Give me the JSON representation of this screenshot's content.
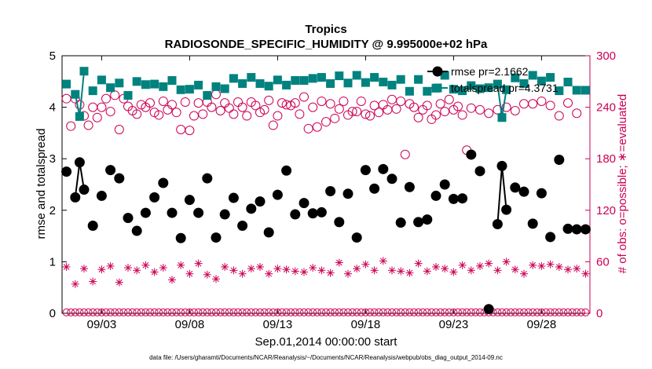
{
  "chart_data": {
    "type": "line",
    "title": "Tropics",
    "subtitle": "RADIOSONDE_SPECIFIC_HUMIDITY @ 9.995000e+02 hPa",
    "xlabel": "Sep.01,2014 00:00:00 start",
    "ylabel_left": "rmse and totalspread",
    "ylabel_right": "# of obs: o=possible; ∗=evaluated",
    "footnote": "data file: /Users/gharamti/Documents/NCAR/Reanalysis/~/Documents/NCAR/Reanalysis/webpub/obs_diag_output_2014-09.nc",
    "x_range_days": [
      0.75,
      30.75
    ],
    "x_ticks": [
      {
        "day": 3,
        "label": "09/03"
      },
      {
        "day": 8,
        "label": "09/08"
      },
      {
        "day": 13,
        "label": "09/13"
      },
      {
        "day": 18,
        "label": "09/18"
      },
      {
        "day": 23,
        "label": "09/23"
      },
      {
        "day": 28,
        "label": "09/28"
      }
    ],
    "ylim_left": [
      0,
      5
    ],
    "yticks_left": [
      "0",
      "1",
      "2",
      "3",
      "4",
      "5"
    ],
    "ylim_right": [
      0,
      300
    ],
    "yticks_right": [
      "0",
      "60",
      "120",
      "180",
      "240",
      "300"
    ],
    "colors": {
      "rmse": "#000000",
      "totalspread": "#00827f",
      "obs": "#cc0055",
      "axis": "#000000"
    },
    "legend": [
      "rmse pr=2.1662",
      "totalspread pr=4.3731"
    ],
    "x": [
      1.0,
      1.25,
      1.5,
      1.75,
      2.0,
      2.25,
      2.5,
      2.75,
      3.0,
      3.25,
      3.5,
      3.75,
      4.0,
      4.25,
      4.5,
      4.75,
      5.0,
      5.25,
      5.5,
      5.75,
      6.0,
      6.25,
      6.5,
      6.75,
      7.0,
      7.25,
      7.5,
      7.75,
      8.0,
      8.25,
      8.5,
      8.75,
      9.0,
      9.25,
      9.5,
      9.75,
      10.0,
      10.25,
      10.5,
      10.75,
      11.0,
      11.25,
      11.5,
      11.75,
      12.0,
      12.25,
      12.5,
      12.75,
      13.0,
      13.25,
      13.5,
      13.75,
      14.0,
      14.25,
      14.5,
      14.75,
      15.0,
      15.25,
      15.5,
      15.75,
      16.0,
      16.25,
      16.5,
      16.75,
      17.0,
      17.25,
      17.5,
      17.75,
      18.0,
      18.25,
      18.5,
      18.75,
      19.0,
      19.25,
      19.5,
      19.75,
      20.0,
      20.25,
      20.5,
      20.75,
      21.0,
      21.25,
      21.5,
      21.75,
      22.0,
      22.25,
      22.5,
      22.75,
      23.0,
      23.25,
      23.5,
      23.75,
      24.0,
      24.25,
      24.5,
      24.75,
      25.0,
      25.25,
      25.5,
      25.75,
      26.0,
      26.25,
      26.5,
      26.75,
      27.0,
      27.25,
      27.5,
      27.75,
      28.0,
      28.25,
      28.5,
      28.75,
      29.0,
      29.25,
      29.5,
      29.75,
      30.0,
      30.25,
      30.5
    ],
    "series": [
      {
        "name": "rmse",
        "axis": "left",
        "marker": "filled-circle",
        "x": [
          1.0,
          1.5,
          1.75,
          2.0,
          2.5,
          3.0,
          3.5,
          4.0,
          4.5,
          5.0,
          5.5,
          6.0,
          6.5,
          7.0,
          7.5,
          8.0,
          8.5,
          9.0,
          9.5,
          10.0,
          10.5,
          11.0,
          11.5,
          12.0,
          12.5,
          13.0,
          13.5,
          14.0,
          14.5,
          15.0,
          15.5,
          16.0,
          16.5,
          17.0,
          17.5,
          18.0,
          18.5,
          19.0,
          19.5,
          20.0,
          20.5,
          21.0,
          21.5,
          22.0,
          22.5,
          23.0,
          23.5,
          24.0,
          24.5,
          25.0,
          25.5,
          25.75,
          26.0,
          26.5,
          27.0,
          27.5,
          28.0,
          28.5,
          29.0,
          29.5,
          30.0,
          30.5
        ],
        "values": [
          2.75,
          2.25,
          2.93,
          2.4,
          1.7,
          2.28,
          2.78,
          2.62,
          1.85,
          1.6,
          1.95,
          2.25,
          2.53,
          1.95,
          1.46,
          2.2,
          1.95,
          2.62,
          1.47,
          1.92,
          2.24,
          1.7,
          2.03,
          2.17,
          1.57,
          2.3,
          2.77,
          1.92,
          2.14,
          1.94,
          1.96,
          2.37,
          1.77,
          2.32,
          1.47,
          2.78,
          2.42,
          2.8,
          2.61,
          1.76,
          2.45,
          1.77,
          1.82,
          2.28,
          2.5,
          2.22,
          2.23,
          3.08,
          2.76,
          0.08,
          1.73,
          2.86,
          2.01,
          2.44,
          2.36,
          1.74,
          2.33,
          1.48,
          2.98,
          1.64,
          1.63,
          1.63
        ],
        "connected_segments": [
          [
            1.5,
            1.75
          ],
          [
            1.75,
            2.0
          ],
          [
            25.5,
            25.75
          ],
          [
            25.75,
            26.0
          ]
        ]
      },
      {
        "name": "totalspread",
        "axis": "left",
        "marker": "filled-square",
        "x": [
          1.0,
          1.5,
          1.75,
          2.0,
          2.5,
          3.0,
          3.5,
          4.0,
          4.5,
          5.0,
          5.5,
          6.0,
          6.5,
          7.0,
          7.5,
          8.0,
          8.5,
          9.0,
          9.5,
          10.0,
          10.5,
          11.0,
          11.5,
          12.0,
          12.5,
          13.0,
          13.5,
          14.0,
          14.5,
          15.0,
          15.5,
          16.0,
          16.5,
          17.0,
          17.5,
          18.0,
          18.5,
          19.0,
          19.5,
          20.0,
          20.5,
          21.0,
          21.5,
          22.0,
          22.5,
          23.0,
          23.5,
          24.0,
          24.5,
          25.0,
          25.5,
          25.75,
          26.0,
          26.5,
          27.0,
          27.5,
          28.0,
          28.5,
          29.0,
          29.5,
          30.0,
          30.5
        ],
        "values": [
          4.45,
          4.25,
          3.82,
          4.7,
          4.32,
          4.53,
          4.38,
          4.47,
          4.23,
          4.5,
          4.44,
          4.45,
          4.4,
          4.52,
          4.34,
          4.35,
          4.43,
          4.23,
          4.4,
          4.36,
          4.56,
          4.46,
          4.58,
          4.46,
          4.41,
          4.53,
          4.43,
          4.52,
          4.52,
          4.56,
          4.58,
          4.46,
          4.61,
          4.47,
          4.62,
          4.48,
          4.58,
          4.49,
          4.43,
          4.54,
          4.31,
          4.54,
          4.31,
          4.37,
          4.62,
          4.35,
          4.32,
          4.42,
          4.36,
          4.38,
          4.45,
          3.8,
          4.34,
          4.57,
          4.46,
          4.62,
          4.51,
          4.58,
          4.32,
          4.49,
          4.33,
          4.33
        ],
        "connected_segments": [
          [
            1.5,
            1.75
          ],
          [
            1.75,
            2.0
          ],
          [
            25.5,
            25.75
          ],
          [
            25.75,
            26.0
          ]
        ]
      },
      {
        "name": "obs_possible",
        "axis": "right",
        "marker": "open-circle",
        "x": [
          1.0,
          1.25,
          1.5,
          1.75,
          2.0,
          2.25,
          2.5,
          2.75,
          3.0,
          3.25,
          3.5,
          3.75,
          4.0,
          4.25,
          4.5,
          4.75,
          5.0,
          5.25,
          5.5,
          5.75,
          6.0,
          6.25,
          6.5,
          6.75,
          7.0,
          7.25,
          7.5,
          7.75,
          8.0,
          8.25,
          8.5,
          8.75,
          9.0,
          9.25,
          9.5,
          9.75,
          10.0,
          10.25,
          10.5,
          10.75,
          11.0,
          11.25,
          11.5,
          11.75,
          12.0,
          12.25,
          12.5,
          12.75,
          13.0,
          13.25,
          13.5,
          13.75,
          14.0,
          14.25,
          14.5,
          14.75,
          15.0,
          15.25,
          15.5,
          15.75,
          16.0,
          16.25,
          16.5,
          16.75,
          17.0,
          17.25,
          17.5,
          17.75,
          18.0,
          18.25,
          18.5,
          18.75,
          19.0,
          19.25,
          19.5,
          19.75,
          20.0,
          20.25,
          20.5,
          20.75,
          21.0,
          21.25,
          21.5,
          21.75,
          22.0,
          22.25,
          22.5,
          22.75,
          23.0,
          23.25,
          23.5,
          23.75,
          24.0,
          24.5,
          25.0,
          25.5,
          26.0,
          26.5,
          27.0,
          27.5,
          28.0,
          28.5,
          29.0,
          29.5,
          30.0
        ],
        "values": [
          250,
          218,
          250,
          243,
          230,
          219,
          240,
          228,
          240,
          250,
          235,
          254,
          214,
          250,
          241,
          236,
          232,
          243,
          240,
          245,
          234,
          231,
          247,
          237,
          243,
          234,
          214,
          246,
          213,
          230,
          245,
          232,
          246,
          240,
          255,
          236,
          245,
          239,
          232,
          246,
          240,
          230,
          246,
          242,
          234,
          237,
          248,
          219,
          230,
          245,
          243,
          242,
          245,
          232,
          252,
          215,
          240,
          217,
          247,
          223,
          244,
          227,
          238,
          247,
          231,
          235,
          235,
          247,
          232,
          230,
          242,
          234,
          243,
          237,
          249,
          238,
          247,
          185,
          244,
          240,
          228,
          237,
          242,
          226,
          231,
          244,
          235,
          249,
          237,
          241,
          231,
          190,
          239,
          237,
          233,
          237,
          240,
          236,
          244,
          244,
          247,
          242,
          230,
          245,
          233
        ],
        "note": "All open circles at day level plus near-zero baseline markers at 0 obs"
      },
      {
        "name": "obs_evaluated",
        "axis": "right",
        "marker": "asterisk",
        "x": [
          1.0,
          1.5,
          2.0,
          2.5,
          3.0,
          3.5,
          4.0,
          4.5,
          5.0,
          5.5,
          6.0,
          6.5,
          7.0,
          7.5,
          8.0,
          8.5,
          9.0,
          9.5,
          10.0,
          10.5,
          11.0,
          11.5,
          12.0,
          12.5,
          13.0,
          13.5,
          14.0,
          14.5,
          15.0,
          15.5,
          16.0,
          16.5,
          17.0,
          17.5,
          18.0,
          18.5,
          19.0,
          19.5,
          20.0,
          20.5,
          21.0,
          21.5,
          22.0,
          22.5,
          23.0,
          23.5,
          24.0,
          24.5,
          25.0,
          25.5,
          26.0,
          26.5,
          27.0,
          27.5,
          28.0,
          28.5,
          29.0,
          29.5,
          30.0,
          30.5
        ],
        "values": [
          54,
          34,
          52,
          37,
          51,
          55,
          36,
          53,
          50,
          56,
          48,
          53,
          39,
          56,
          46,
          58,
          45,
          40,
          54,
          50,
          46,
          52,
          54,
          46,
          52,
          51,
          49,
          48,
          53,
          50,
          47,
          59,
          46,
          52,
          57,
          50,
          61,
          50,
          49,
          47,
          58,
          49,
          54,
          52,
          48,
          56,
          50,
          55,
          58,
          50,
          60,
          51,
          46,
          56,
          55,
          57,
          54,
          51,
          52,
          46
        ],
        "note": "Evaluated obs count (asterisks)"
      }
    ]
  }
}
